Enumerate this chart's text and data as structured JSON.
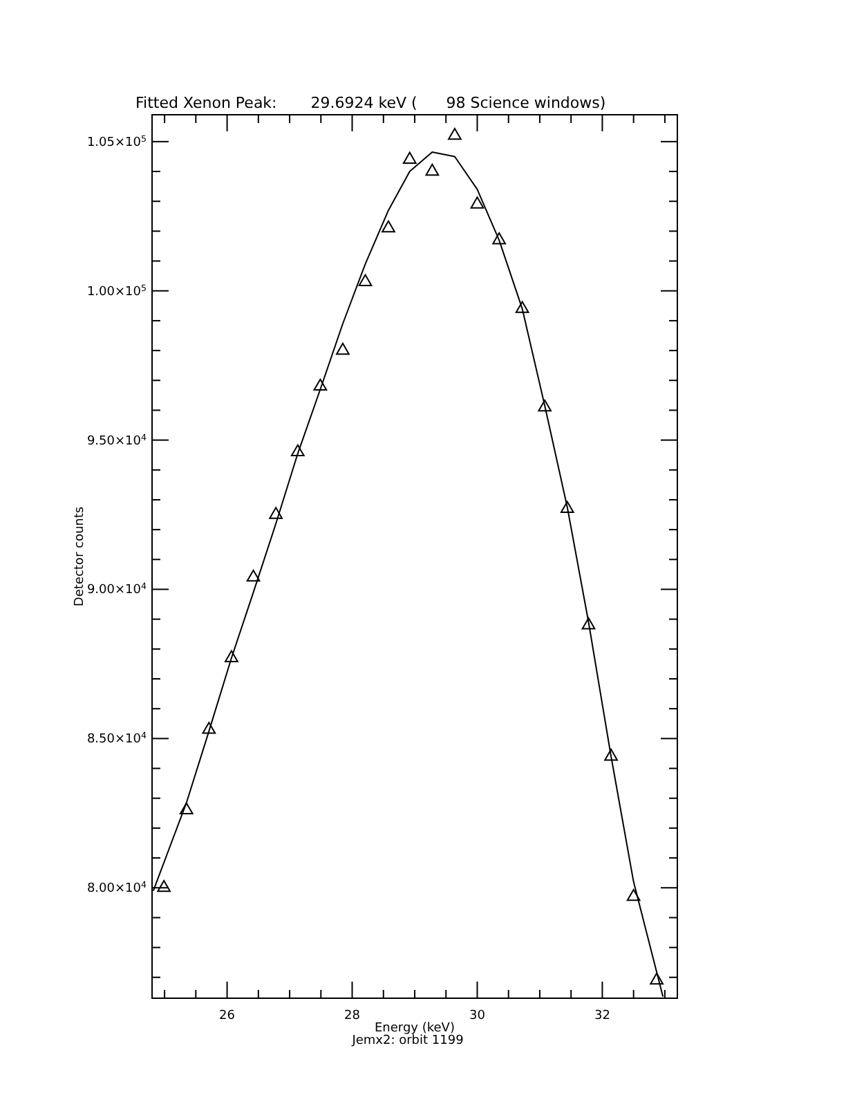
{
  "chart_data": {
    "type": "scatter",
    "title": "Fitted Xenon Peak:       29.6924 keV (      98 Science windows)",
    "xlabel": "Energy (keV)",
    "ylabel": "Detector counts",
    "annotations": [
      "Jemx2: orbit 1199"
    ],
    "xlim": [
      24.8,
      33.2
    ],
    "ylim": [
      76300,
      105900
    ],
    "xticks": [
      {
        "value": 25,
        "label": null
      },
      {
        "value": 25.5,
        "label": null
      },
      26,
      {
        "value": 26.5,
        "label": null
      },
      {
        "value": 27,
        "label": null
      },
      {
        "value": 27.5,
        "label": null
      },
      28,
      {
        "value": 28.5,
        "label": null
      },
      {
        "value": 29,
        "label": null
      },
      {
        "value": 29.5,
        "label": null
      },
      30,
      {
        "value": 30.5,
        "label": null
      },
      {
        "value": 31,
        "label": null
      },
      {
        "value": 31.5,
        "label": null
      },
      32,
      {
        "value": 32.5,
        "label": null
      },
      {
        "value": 33,
        "label": null
      }
    ],
    "yticks": [
      {
        "value": 77000,
        "label": null
      },
      {
        "value": 78000,
        "label": null
      },
      {
        "value": 79000,
        "label": null
      },
      {
        "value": 80000,
        "label": "8.00×10$^{4}$"
      },
      {
        "value": 81000,
        "label": null
      },
      {
        "value": 82000,
        "label": null
      },
      {
        "value": 83000,
        "label": null
      },
      {
        "value": 84000,
        "label": null
      },
      {
        "value": 85000,
        "label": "8.50×10$^{4}$"
      },
      {
        "value": 86000,
        "label": null
      },
      {
        "value": 87000,
        "label": null
      },
      {
        "value": 88000,
        "label": null
      },
      {
        "value": 89000,
        "label": null
      },
      {
        "value": 90000,
        "label": "9.00×10$^{4}$"
      },
      {
        "value": 91000,
        "label": null
      },
      {
        "value": 92000,
        "label": null
      },
      {
        "value": 93000,
        "label": null
      },
      {
        "value": 94000,
        "label": null
      },
      {
        "value": 95000,
        "label": "9.50×10$^{4}$"
      },
      {
        "value": 96000,
        "label": null
      },
      {
        "value": 97000,
        "label": null
      },
      {
        "value": 98000,
        "label": null
      },
      {
        "value": 99000,
        "label": null
      },
      {
        "value": 100000,
        "label": "1.00×10$^{5}$"
      },
      {
        "value": 101000,
        "label": null
      },
      {
        "value": 102000,
        "label": null
      },
      {
        "value": 103000,
        "label": null
      },
      {
        "value": 104000,
        "label": null
      },
      {
        "value": 105000,
        "label": "1.05×10$^{5}$"
      }
    ],
    "series": [
      {
        "marker": "triangle",
        "color": "#000000",
        "x": [
          24.99,
          25.35,
          25.71,
          26.07,
          26.42,
          26.78,
          27.13,
          27.49,
          27.85,
          28.21,
          28.58,
          28.92,
          29.28,
          29.64,
          30.0,
          30.35,
          30.72,
          31.08,
          31.44,
          31.78,
          32.14,
          32.5,
          32.87
        ],
        "values": [
          80000,
          82600,
          85300,
          87700,
          90400,
          92500,
          94600,
          96800,
          98000,
          100300,
          102100,
          104400,
          104000,
          105200,
          102900,
          101700,
          99400,
          96100,
          92700,
          88800,
          84400,
          79700,
          76900
        ]
      },
      {
        "type": "line",
        "marker": "none",
        "line_style": "solid",
        "color": "#000000",
        "x": [
          24.82,
          25.35,
          25.71,
          26.07,
          26.42,
          26.78,
          27.13,
          27.49,
          27.85,
          28.21,
          28.58,
          28.92,
          29.28,
          29.64,
          30.0,
          30.35,
          30.72,
          31.08,
          31.44,
          31.78,
          32.14,
          32.5,
          32.97
        ],
        "values": [
          79900,
          82850,
          85250,
          87700,
          89900,
          92200,
          94550,
          96700,
          98900,
          100900,
          102700,
          104000,
          104650,
          104500,
          103400,
          101700,
          99400,
          96150,
          92750,
          88900,
          84400,
          80200,
          76350
        ]
      }
    ]
  }
}
